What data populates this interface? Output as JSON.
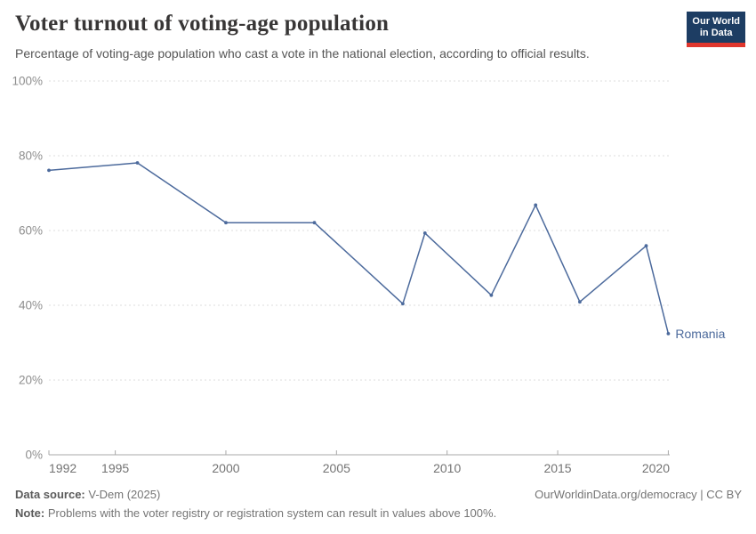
{
  "header": {
    "logo": {
      "line1": "Our World",
      "line2": "in Data",
      "bg_color": "#1d3d63",
      "stripe_color": "#e0362d"
    }
  },
  "chart_data": {
    "type": "line",
    "title": "Voter turnout of voting-age population",
    "subtitle": "Percentage of voting-age population who cast a vote in the national election, according to official results.",
    "xlabel": "",
    "ylabel": "",
    "xlim": [
      1992,
      2020
    ],
    "ylim": [
      0,
      100
    ],
    "x_ticks": [
      1992,
      1995,
      2000,
      2005,
      2010,
      2015,
      2020
    ],
    "y_ticks": [
      0,
      20,
      40,
      60,
      80,
      100
    ],
    "y_tick_suffix": "%",
    "grid": "horizontal dashed",
    "legend_position": "end-of-line label",
    "series": [
      {
        "name": "Romania",
        "color": "#4C6A9C",
        "points": [
          [
            1992,
            76.1
          ],
          [
            1996,
            78.1
          ],
          [
            2000,
            62.1
          ],
          [
            2004,
            62.1
          ],
          [
            2008,
            40.4
          ],
          [
            2009,
            59.3
          ],
          [
            2012,
            42.7
          ],
          [
            2014,
            66.8
          ],
          [
            2016,
            40.9
          ],
          [
            2019,
            55.9
          ],
          [
            2020,
            32.4
          ]
        ]
      }
    ],
    "style": {
      "gridline_color": "#dedede",
      "axis_color": "#a8a8a8",
      "y_label_color": "#8e8e8e",
      "x_label_color": "#737373"
    }
  },
  "footer": {
    "source_label": "Data source:",
    "source_value": "V-Dem (2025)",
    "right_link": "OurWorldinData.org/democracy | CC BY",
    "note_label": "Note:",
    "note_value": "Problems with the voter registry or registration system can result in values above 100%."
  }
}
